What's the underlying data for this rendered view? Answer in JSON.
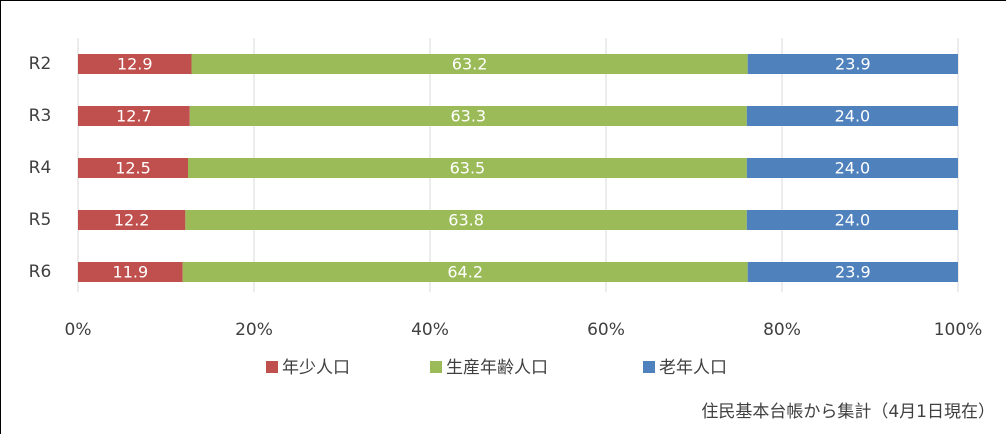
{
  "chart_data": {
    "type": "stacked_bar_horizontal",
    "categories": [
      "R2",
      "R3",
      "R4",
      "R5",
      "R6"
    ],
    "series": [
      {
        "name": "年少人口",
        "color": "#c0504d",
        "values": [
          12.9,
          12.7,
          12.5,
          12.2,
          11.9
        ],
        "value_labels": [
          "12.9",
          "12.7",
          "12.5",
          "12.2",
          "11.9"
        ]
      },
      {
        "name": "生産年齢人口",
        "color": "#9bbb59",
        "values": [
          63.2,
          63.3,
          63.5,
          63.8,
          64.2
        ],
        "value_labels": [
          "63.2",
          "63.3",
          "63.5",
          "63.8",
          "64.2"
        ]
      },
      {
        "name": "老年人口",
        "color": "#4f81bd",
        "values": [
          23.9,
          24.0,
          24.0,
          24.0,
          23.9
        ],
        "value_labels": [
          "23.9",
          "24.0",
          "24.0",
          "24.0",
          "23.9"
        ]
      }
    ],
    "xlim": [
      0,
      100
    ],
    "xticks": [
      {
        "value": 0,
        "label": "0%"
      },
      {
        "value": 20,
        "label": "20%"
      },
      {
        "value": 40,
        "label": "40%"
      },
      {
        "value": 60,
        "label": "60%"
      },
      {
        "value": 80,
        "label": "80%"
      },
      {
        "value": 100,
        "label": "100%"
      }
    ],
    "grid": true,
    "legend": "bottom",
    "annotation": "住民基本台帳から集計（4月1日現在）"
  }
}
